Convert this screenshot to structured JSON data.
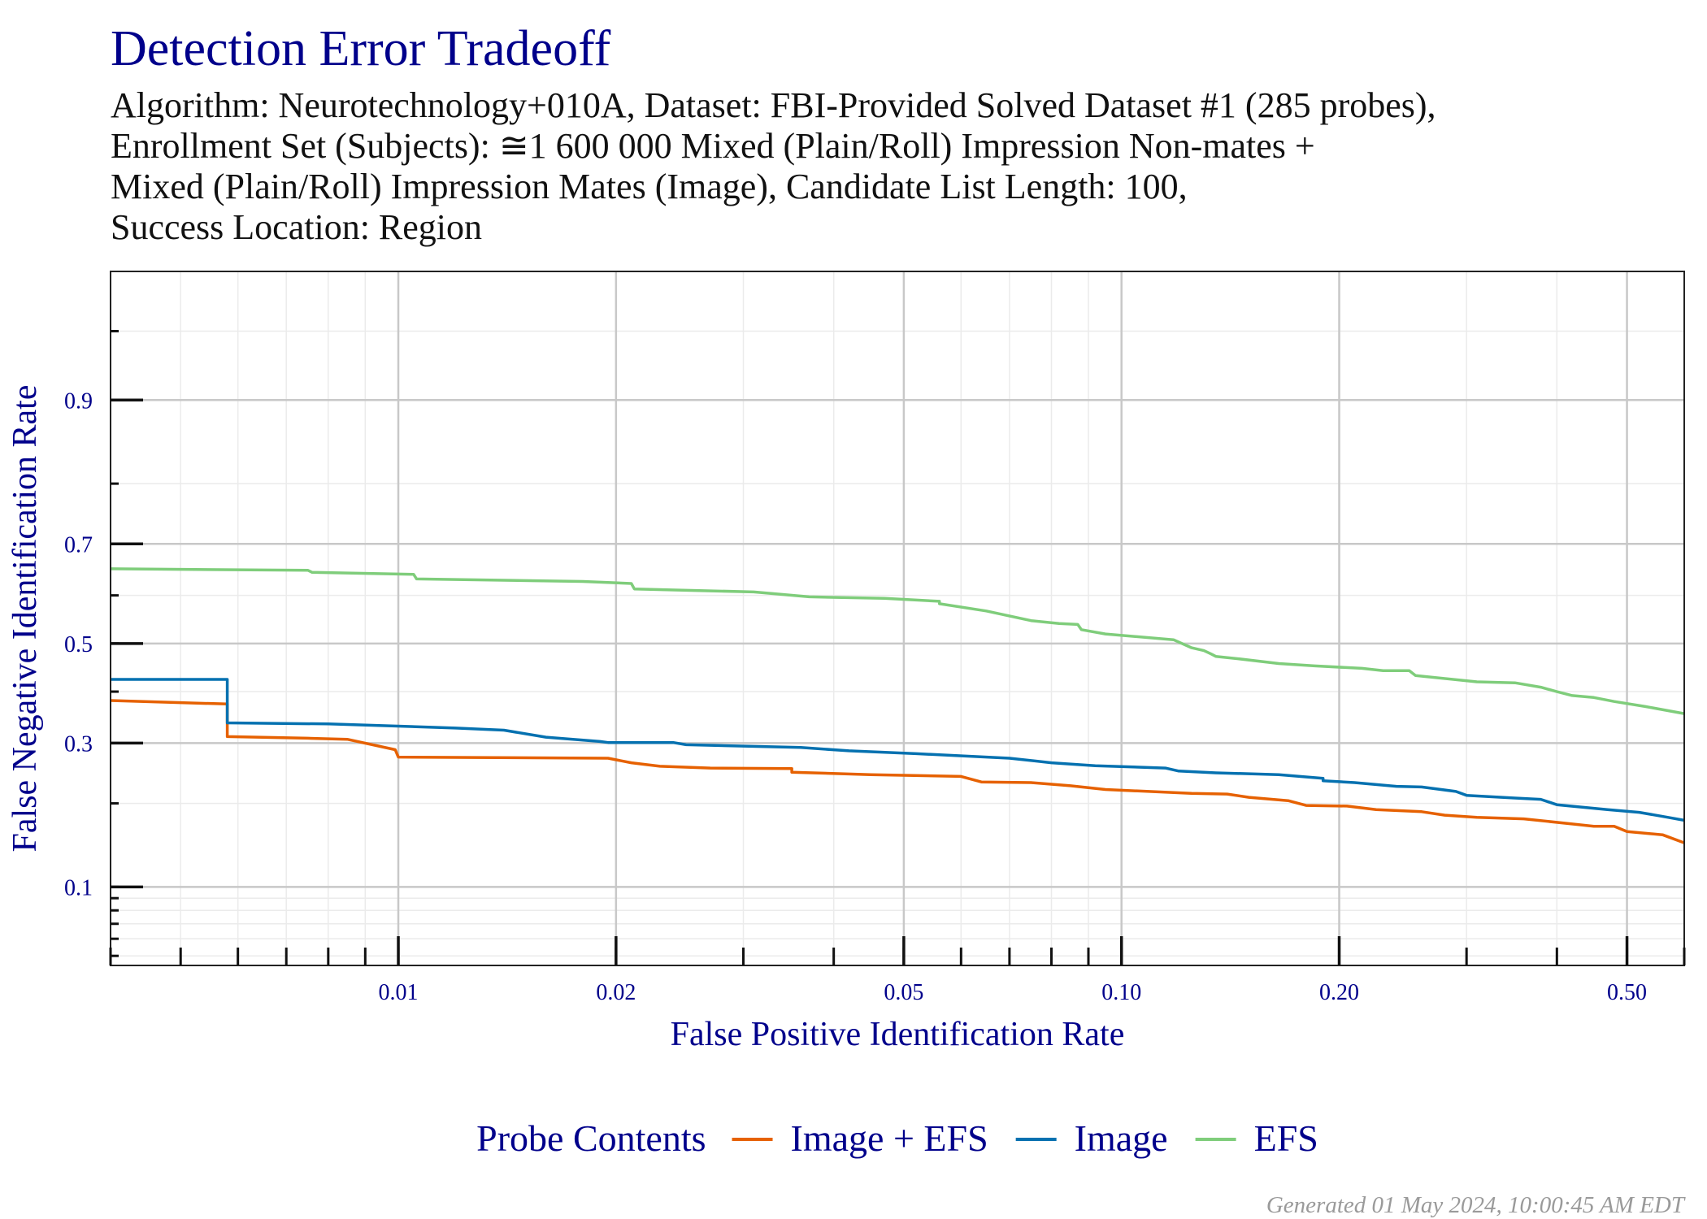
{
  "chart_data": {
    "type": "line",
    "title": "Detection Error Tradeoff",
    "subtitle_lines": [
      "Algorithm: Neurotechnology+010A, Dataset: FBI-Provided Solved Dataset #1 (285 probes),",
      "Enrollment Set (Subjects): ≅1 600 000 Mixed (Plain/Roll) Impression Non-mates +",
      "Mixed (Plain/Roll) Impression Mates (Image), Candidate List Length: 100,",
      "Success Location: Region"
    ],
    "xlabel": "False Positive Identification Rate",
    "ylabel": "False Negative Identification Rate",
    "x_scale": "log",
    "y_scale": "probit",
    "xlim": [
      0.004,
      0.6
    ],
    "ylim": [
      0.045,
      0.975
    ],
    "x_ticks": [
      {
        "value": 0.01,
        "label": "0.01"
      },
      {
        "value": 0.02,
        "label": "0.02"
      },
      {
        "value": 0.05,
        "label": "0.05"
      },
      {
        "value": 0.1,
        "label": "0.10"
      },
      {
        "value": 0.2,
        "label": "0.20"
      },
      {
        "value": 0.5,
        "label": "0.50"
      }
    ],
    "y_ticks": [
      {
        "value": 0.1,
        "label": "0.1"
      },
      {
        "value": 0.3,
        "label": "0.3"
      },
      {
        "value": 0.5,
        "label": "0.5"
      },
      {
        "value": 0.7,
        "label": "0.7"
      },
      {
        "value": 0.9,
        "label": "0.9"
      }
    ],
    "grid": true,
    "legend": {
      "title": "Probe Contents",
      "position": "bottom"
    },
    "series": [
      {
        "name": "Image + EFS",
        "color": "#e66101",
        "points": [
          [
            0.004,
            0.382
          ],
          [
            0.0058,
            0.375
          ],
          [
            0.0058,
            0.312
          ],
          [
            0.0075,
            0.309
          ],
          [
            0.0085,
            0.307
          ],
          [
            0.0099,
            0.288
          ],
          [
            0.01,
            0.275
          ],
          [
            0.0195,
            0.273
          ],
          [
            0.021,
            0.265
          ],
          [
            0.023,
            0.259
          ],
          [
            0.027,
            0.256
          ],
          [
            0.035,
            0.255
          ],
          [
            0.035,
            0.249
          ],
          [
            0.045,
            0.245
          ],
          [
            0.06,
            0.242
          ],
          [
            0.064,
            0.233
          ],
          [
            0.075,
            0.232
          ],
          [
            0.085,
            0.227
          ],
          [
            0.095,
            0.221
          ],
          [
            0.125,
            0.215
          ],
          [
            0.14,
            0.214
          ],
          [
            0.15,
            0.209
          ],
          [
            0.17,
            0.204
          ],
          [
            0.18,
            0.197
          ],
          [
            0.205,
            0.196
          ],
          [
            0.225,
            0.191
          ],
          [
            0.26,
            0.188
          ],
          [
            0.28,
            0.183
          ],
          [
            0.31,
            0.18
          ],
          [
            0.36,
            0.178
          ],
          [
            0.45,
            0.168
          ],
          [
            0.48,
            0.168
          ],
          [
            0.5,
            0.161
          ],
          [
            0.56,
            0.157
          ],
          [
            0.6,
            0.147
          ]
        ]
      },
      {
        "name": "Image",
        "color": "#0571b0",
        "points": [
          [
            0.004,
            0.425
          ],
          [
            0.0058,
            0.425
          ],
          [
            0.0058,
            0.338
          ],
          [
            0.008,
            0.336
          ],
          [
            0.011,
            0.33
          ],
          [
            0.012,
            0.328
          ],
          [
            0.014,
            0.324
          ],
          [
            0.016,
            0.311
          ],
          [
            0.019,
            0.303
          ],
          [
            0.0195,
            0.301
          ],
          [
            0.021,
            0.301
          ],
          [
            0.024,
            0.301
          ],
          [
            0.025,
            0.297
          ],
          [
            0.036,
            0.292
          ],
          [
            0.042,
            0.286
          ],
          [
            0.052,
            0.281
          ],
          [
            0.07,
            0.273
          ],
          [
            0.08,
            0.265
          ],
          [
            0.092,
            0.26
          ],
          [
            0.115,
            0.256
          ],
          [
            0.12,
            0.251
          ],
          [
            0.135,
            0.248
          ],
          [
            0.165,
            0.245
          ],
          [
            0.19,
            0.239
          ],
          [
            0.19,
            0.235
          ],
          [
            0.21,
            0.232
          ],
          [
            0.24,
            0.226
          ],
          [
            0.26,
            0.225
          ],
          [
            0.29,
            0.218
          ],
          [
            0.3,
            0.212
          ],
          [
            0.35,
            0.208
          ],
          [
            0.38,
            0.206
          ],
          [
            0.4,
            0.198
          ],
          [
            0.47,
            0.191
          ],
          [
            0.52,
            0.187
          ],
          [
            0.57,
            0.18
          ],
          [
            0.6,
            0.176
          ]
        ]
      },
      {
        "name": "EFS",
        "color": "#7fcd7b",
        "points": [
          [
            0.004,
            0.653
          ],
          [
            0.0075,
            0.65
          ],
          [
            0.0076,
            0.646
          ],
          [
            0.0105,
            0.642
          ],
          [
            0.0106,
            0.633
          ],
          [
            0.018,
            0.628
          ],
          [
            0.021,
            0.624
          ],
          [
            0.0212,
            0.613
          ],
          [
            0.031,
            0.607
          ],
          [
            0.037,
            0.597
          ],
          [
            0.047,
            0.594
          ],
          [
            0.056,
            0.588
          ],
          [
            0.056,
            0.583
          ],
          [
            0.065,
            0.568
          ],
          [
            0.075,
            0.548
          ],
          [
            0.082,
            0.542
          ],
          [
            0.087,
            0.54
          ],
          [
            0.088,
            0.529
          ],
          [
            0.095,
            0.52
          ],
          [
            0.118,
            0.508
          ],
          [
            0.125,
            0.491
          ],
          [
            0.13,
            0.485
          ],
          [
            0.133,
            0.478
          ],
          [
            0.135,
            0.473
          ],
          [
            0.145,
            0.468
          ],
          [
            0.165,
            0.458
          ],
          [
            0.185,
            0.453
          ],
          [
            0.215,
            0.448
          ],
          [
            0.23,
            0.443
          ],
          [
            0.25,
            0.443
          ],
          [
            0.255,
            0.433
          ],
          [
            0.31,
            0.42
          ],
          [
            0.35,
            0.418
          ],
          [
            0.38,
            0.409
          ],
          [
            0.4,
            0.4
          ],
          [
            0.42,
            0.392
          ],
          [
            0.45,
            0.388
          ],
          [
            0.48,
            0.38
          ],
          [
            0.53,
            0.37
          ],
          [
            0.6,
            0.356
          ]
        ]
      }
    ]
  },
  "footer": "Generated 01 May 2024, 10:00:45 AM EDT"
}
